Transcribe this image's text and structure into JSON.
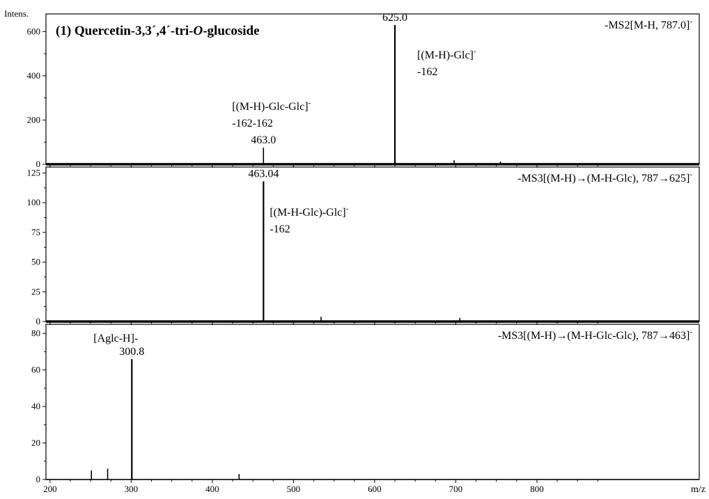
{
  "y_axis_label": "Intens.",
  "x_axis_label": "m/z",
  "chart_data": [
    {
      "type": "bar",
      "panel": 1,
      "title": "(1) Quercetin-3,3´,4´-tri-O-glucoside",
      "scan_label": "-MS2[M-H, 787.0]",
      "scan_sup": "-",
      "ylim": [
        0,
        680
      ],
      "yticks": [
        0,
        200,
        400,
        600
      ],
      "peaks": [
        {
          "mz": 463.0,
          "intensity": 75
        },
        {
          "mz": 625.0,
          "intensity": 630
        },
        {
          "mz": 652,
          "intensity": 5
        },
        {
          "mz": 698,
          "intensity": 18
        },
        {
          "mz": 755,
          "intensity": 12
        },
        {
          "mz": 768,
          "intensity": 5
        },
        {
          "mz": 785,
          "intensity": 4
        }
      ],
      "peak_labels": [
        {
          "mz": 463.0,
          "intensity": 75,
          "text": "463.0"
        },
        {
          "mz": 625.0,
          "intensity": 630,
          "text": "625.0"
        }
      ],
      "annotations": [
        {
          "anchor_mz": 463.0,
          "lines": [
            "[(M-H)-Glc-Glc]",
            "-162-162"
          ],
          "sup": "-"
        },
        {
          "anchor_mz": 625.0,
          "lines": [
            "[(M-H)-Glc]",
            "-162"
          ],
          "sup": "-"
        }
      ]
    },
    {
      "type": "bar",
      "panel": 2,
      "scan_label": "-MS3[(M-H)→(M-H-Glc), 787→625]",
      "scan_sup": "-",
      "ylim": [
        0,
        130
      ],
      "yticks": [
        0,
        25,
        50,
        75,
        100,
        125
      ],
      "peaks": [
        {
          "mz": 463.04,
          "intensity": 118
        },
        {
          "mz": 534,
          "intensity": 4
        },
        {
          "mz": 705,
          "intensity": 3
        }
      ],
      "peak_labels": [
        {
          "mz": 463.04,
          "intensity": 118,
          "text": "463.04"
        }
      ],
      "annotations": [
        {
          "anchor_mz": 463.04,
          "lines": [
            "[(M-H-Glc)-Glc]",
            "-162"
          ],
          "sup": "-"
        }
      ]
    },
    {
      "type": "bar",
      "panel": 3,
      "scan_label": "-MS3[(M-H)→(M-H-Glc-Glc), 787→463]",
      "scan_sup": "-",
      "ylim": [
        0,
        85
      ],
      "yticks": [
        0,
        20,
        40,
        60,
        80
      ],
      "xlim": [
        195,
        1000
      ],
      "xticks": [
        200,
        300,
        400,
        500,
        600,
        700,
        800
      ],
      "peaks": [
        {
          "mz": 251,
          "intensity": 5
        },
        {
          "mz": 271,
          "intensity": 6
        },
        {
          "mz": 300.8,
          "intensity": 66
        },
        {
          "mz": 433,
          "intensity": 3
        }
      ],
      "peak_labels": [
        {
          "mz": 300.8,
          "intensity": 66,
          "text": "300.8"
        }
      ],
      "annotations": [
        {
          "anchor_mz": 300.8,
          "lines": [
            "[Aglc-H]-"
          ],
          "sup": ""
        }
      ]
    }
  ]
}
